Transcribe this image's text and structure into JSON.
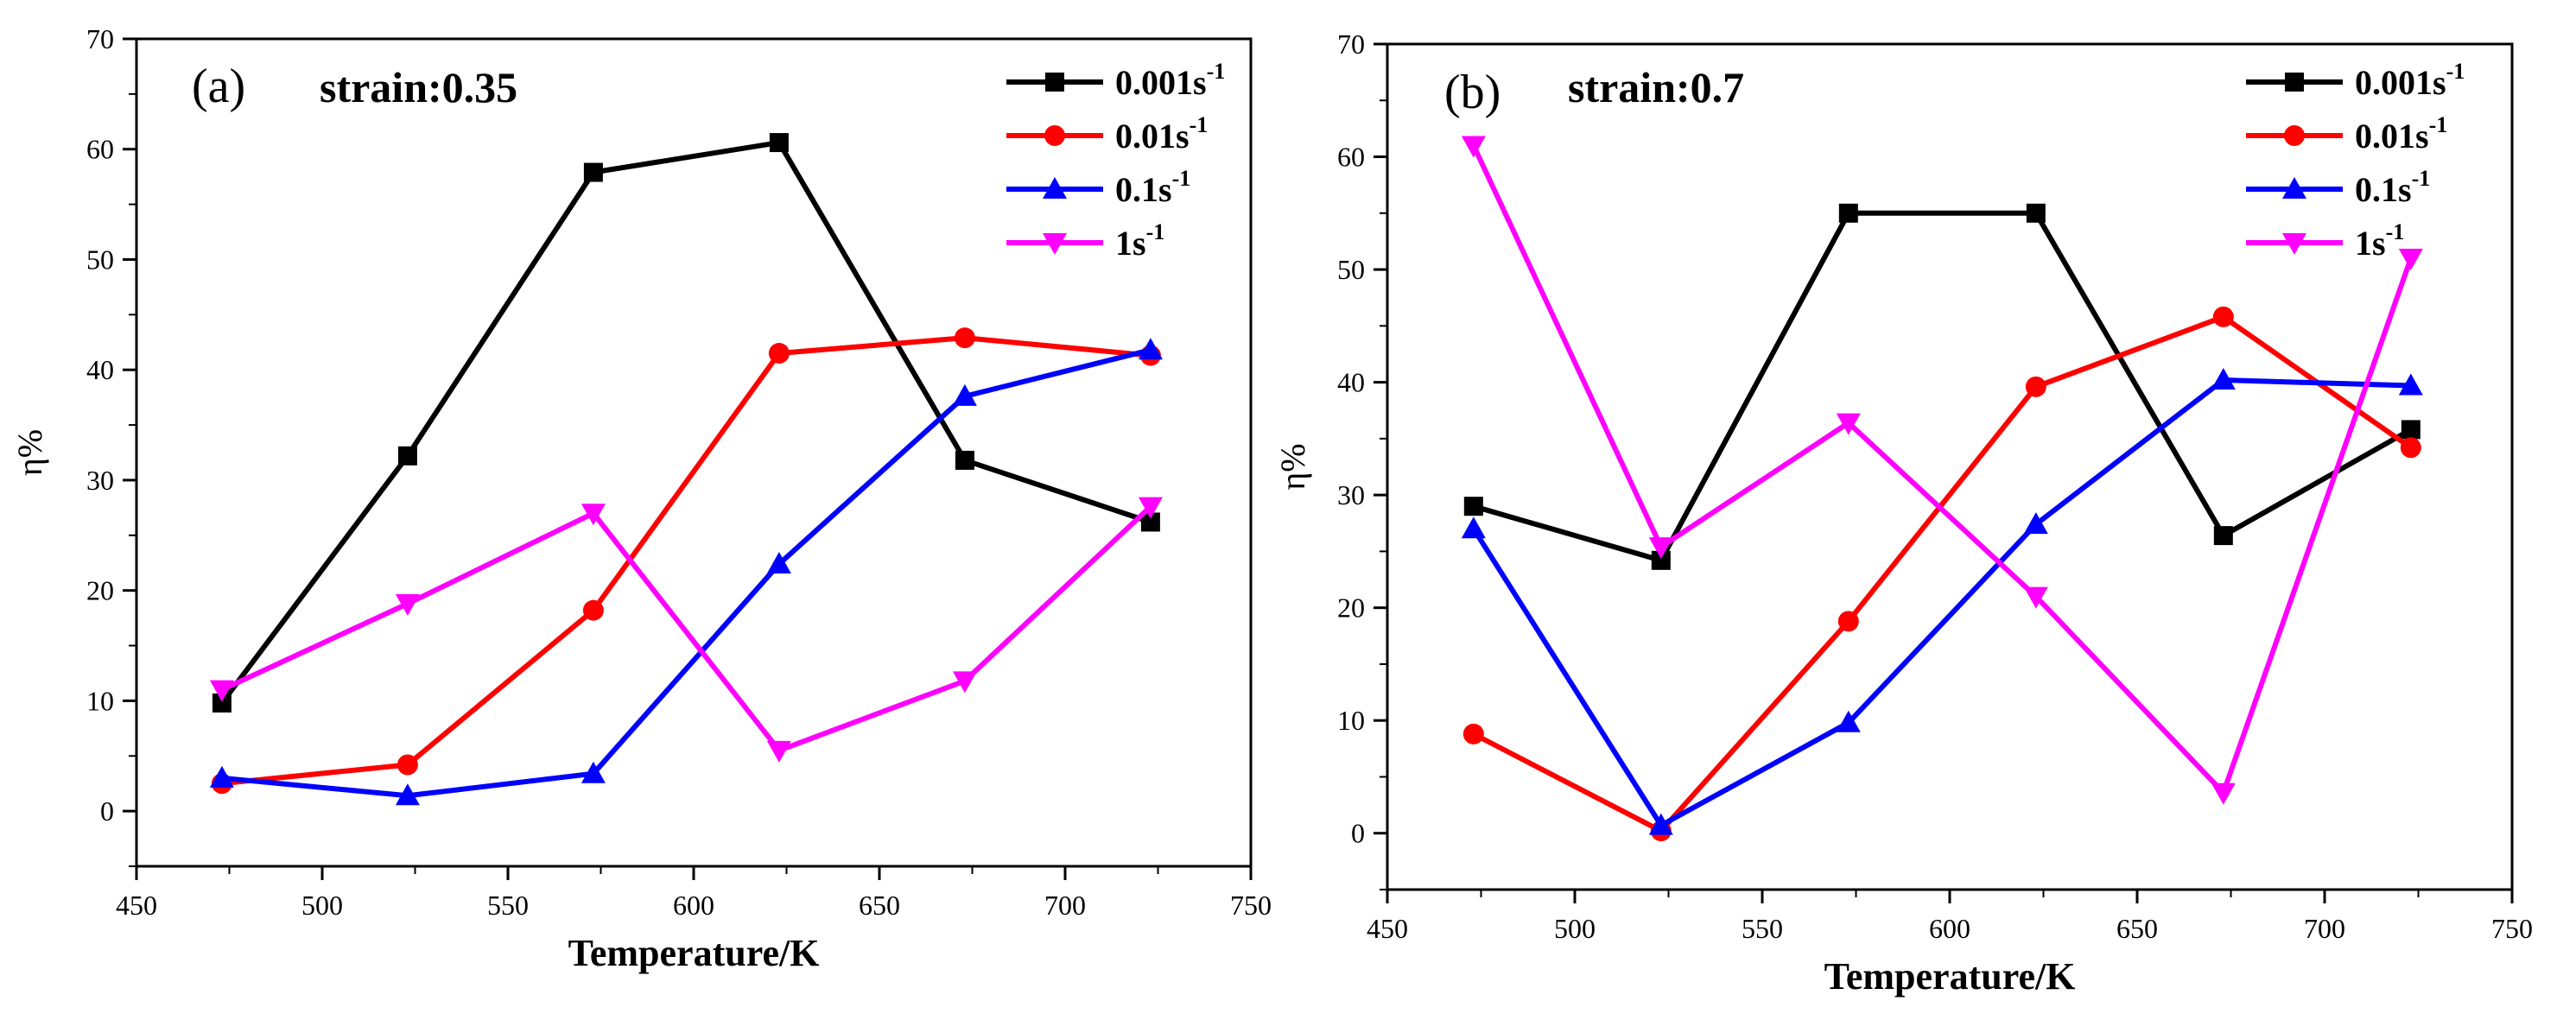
{
  "chart_data": [
    {
      "type": "line",
      "panel_label": "(a)",
      "annotation": "strain:0.35",
      "xlabel": "Temperature/K",
      "ylabel": "η%",
      "xlim": [
        450,
        750
      ],
      "ylim": [
        -5,
        70
      ],
      "x_ticks": [
        450,
        500,
        550,
        600,
        650,
        700,
        750
      ],
      "y_ticks": [
        0,
        10,
        20,
        30,
        40,
        50,
        60,
        70
      ],
      "legend_position": "top-right",
      "x": [
        473,
        523,
        573,
        623,
        673,
        723
      ],
      "series": [
        {
          "name": "0.001",
          "name_sup": "-1",
          "name_unit": "s",
          "color": "#000000",
          "marker": "square",
          "values": [
            9.8,
            32.2,
            57.9,
            60.6,
            31.8,
            26.2
          ]
        },
        {
          "name": "0.01",
          "name_sup": "-1",
          "name_unit": "s",
          "color": "#ff0000",
          "marker": "circle",
          "values": [
            2.5,
            4.2,
            18.2,
            41.5,
            42.9,
            41.3
          ]
        },
        {
          "name": "0.1",
          "name_sup": "-1",
          "name_unit": "s",
          "color": "#0000ff",
          "marker": "triangle-up",
          "values": [
            3.0,
            1.4,
            3.4,
            22.4,
            37.6,
            41.8
          ]
        },
        {
          "name": "1",
          "name_sup": "-1",
          "name_unit": "s",
          "color": "#ff00ff",
          "marker": "triangle-down",
          "values": [
            11.0,
            18.8,
            27.0,
            5.5,
            11.8,
            27.6
          ]
        }
      ]
    },
    {
      "type": "line",
      "panel_label": "(b)",
      "annotation": "strain:0.7",
      "xlabel": "Temperature/K",
      "ylabel": "η%",
      "xlim": [
        450,
        750
      ],
      "ylim": [
        -5,
        70
      ],
      "x_ticks": [
        450,
        500,
        550,
        600,
        650,
        700,
        750
      ],
      "y_ticks": [
        0,
        10,
        20,
        30,
        40,
        50,
        60,
        70
      ],
      "legend_position": "top-right",
      "x": [
        473,
        523,
        573,
        623,
        673,
        723
      ],
      "series": [
        {
          "name": "0.001",
          "name_sup": "-1",
          "name_unit": "s",
          "color": "#000000",
          "marker": "square",
          "values": [
            29.0,
            24.2,
            55.0,
            55.0,
            26.4,
            35.8
          ]
        },
        {
          "name": "0.01",
          "name_sup": "-1",
          "name_unit": "s",
          "color": "#ff0000",
          "marker": "circle",
          "values": [
            8.8,
            0.2,
            18.8,
            39.6,
            45.8,
            34.2
          ]
        },
        {
          "name": "0.1",
          "name_sup": "-1",
          "name_unit": "s",
          "color": "#0000ff",
          "marker": "triangle-up",
          "values": [
            27.0,
            0.7,
            9.8,
            27.4,
            40.2,
            39.7
          ]
        },
        {
          "name": "1",
          "name_sup": "-1",
          "name_unit": "s",
          "color": "#ff00ff",
          "marker": "triangle-down",
          "values": [
            61.0,
            25.4,
            36.4,
            21.0,
            3.6,
            51.0
          ]
        }
      ]
    }
  ]
}
